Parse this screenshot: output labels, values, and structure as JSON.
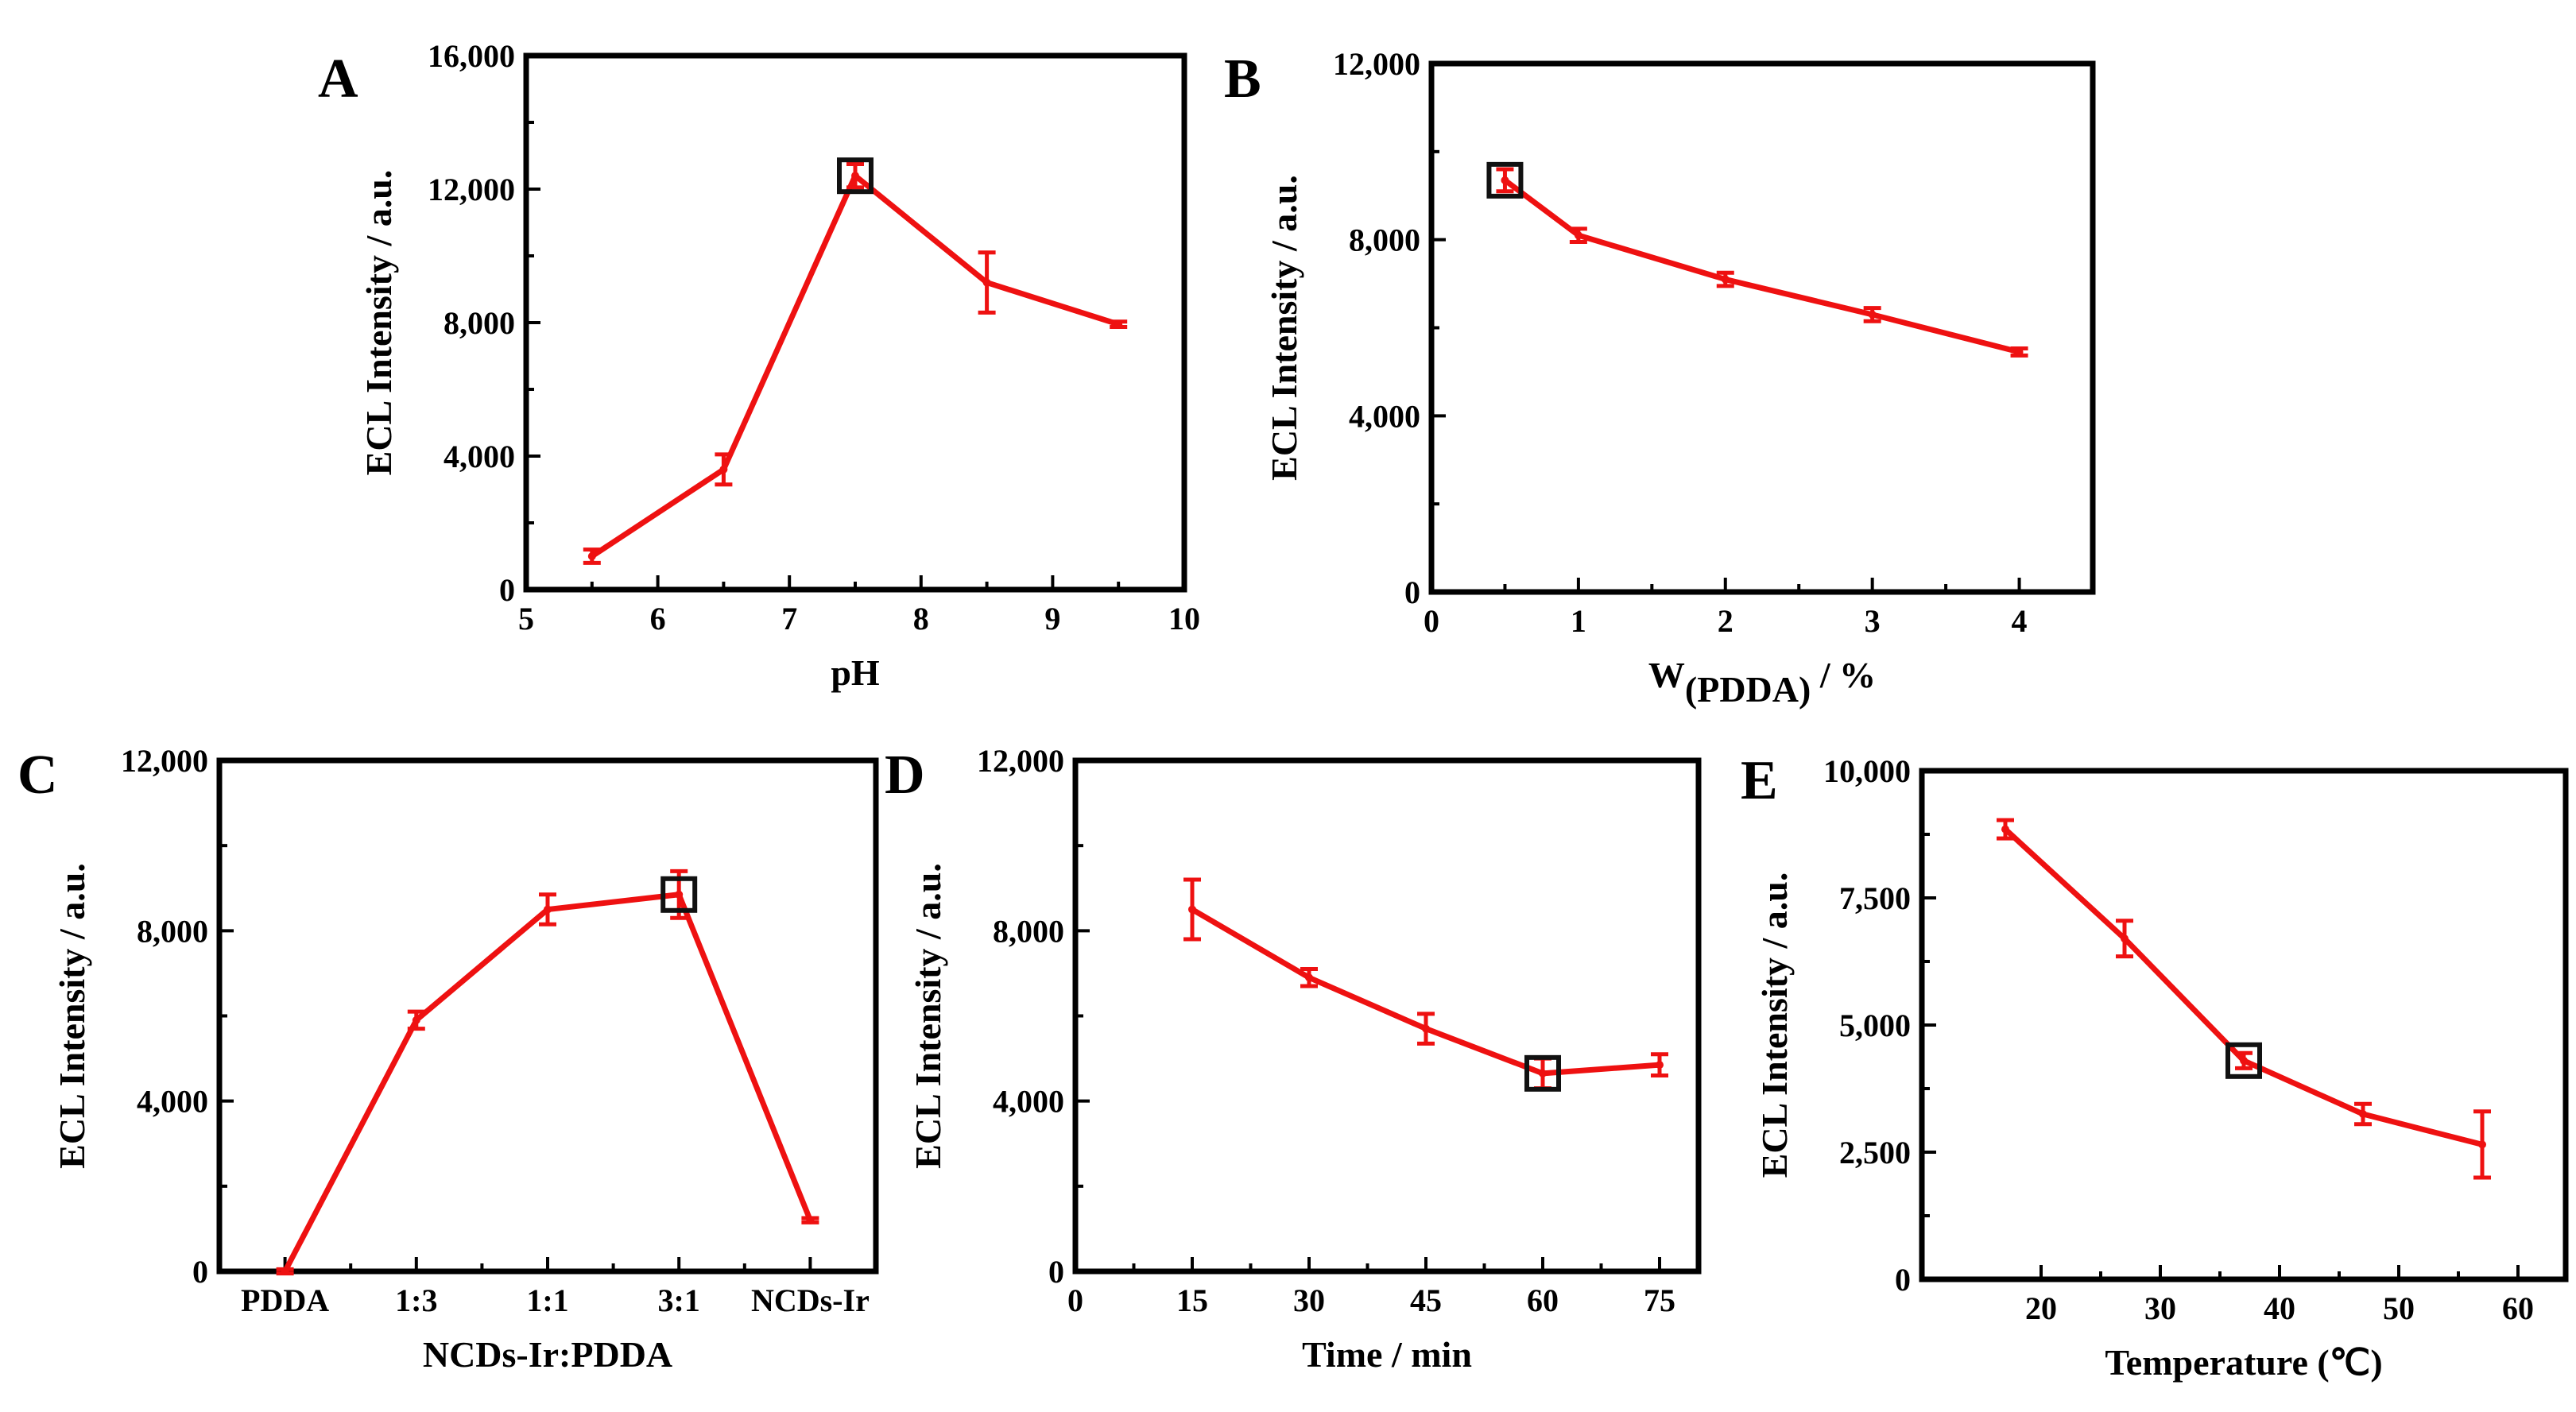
{
  "colors": {
    "series": "#ee1111",
    "axis": "#000000",
    "highlight": "#111111"
  },
  "chart_data": [
    {
      "id": "A",
      "type": "line",
      "panel_label": "A",
      "xlabel": "pH",
      "ylabel": "ECL Intensity / a.u.",
      "xlim": [
        5,
        10
      ],
      "ylim": [
        0,
        16000
      ],
      "xticks": [
        5,
        6,
        7,
        8,
        9,
        10
      ],
      "xtick_labels": [
        "5",
        "6",
        "7",
        "8",
        "9",
        "10"
      ],
      "yticks": [
        0,
        4000,
        8000,
        12000,
        16000
      ],
      "ytick_labels": [
        "0",
        "4,000",
        "8,000",
        "12,000",
        "16,000"
      ],
      "x": [
        5.5,
        6.5,
        7.5,
        8.5,
        9.5
      ],
      "values": [
        1000,
        3600,
        12400,
        9200,
        7950
      ],
      "errors": [
        200,
        450,
        350,
        900,
        80
      ],
      "highlight_index": 2
    },
    {
      "id": "B",
      "type": "line",
      "panel_label": "B",
      "xlabel": "W",
      "xlabel_sub": "(PDDA)",
      "xlabel_suffix": " / %",
      "ylabel": "ECL Intensity / a.u.",
      "xlim": [
        0,
        4.5
      ],
      "ylim": [
        0,
        12000
      ],
      "xticks": [
        0,
        1,
        2,
        3,
        4
      ],
      "xtick_labels": [
        "0",
        "1",
        "2",
        "3",
        "4"
      ],
      "yticks": [
        0,
        4000,
        8000,
        12000
      ],
      "ytick_labels": [
        "0",
        "4,000",
        "8,000",
        "12,000"
      ],
      "x": [
        0.5,
        1,
        2,
        3,
        4
      ],
      "values": [
        9350,
        8100,
        7100,
        6300,
        5450
      ],
      "errors": [
        250,
        150,
        150,
        150,
        80
      ],
      "highlight_index": 0
    },
    {
      "id": "C",
      "type": "line",
      "panel_label": "C",
      "xlabel": "NCDs-Ir:PDDA",
      "ylabel": "ECL Intensity / a.u.",
      "xlim": [
        -0.5,
        4.5
      ],
      "ylim": [
        0,
        12000
      ],
      "xticks": [
        0,
        1,
        2,
        3,
        4
      ],
      "xtick_labels": [
        "PDDA",
        "1:3",
        "1:1",
        "3:1",
        "NCDs-Ir"
      ],
      "yticks": [
        0,
        4000,
        8000,
        12000
      ],
      "ytick_labels": [
        "0",
        "4,000",
        "8,000",
        "12,000"
      ],
      "x": [
        0,
        1,
        2,
        3,
        4
      ],
      "values": [
        0,
        5900,
        8500,
        8850,
        1200
      ],
      "errors": [
        50,
        200,
        350,
        550,
        50
      ],
      "highlight_index": 3
    },
    {
      "id": "D",
      "type": "line",
      "panel_label": "D",
      "xlabel": "Time / min",
      "ylabel": "ECL Intensity / a.u.",
      "xlim": [
        0,
        80
      ],
      "ylim": [
        0,
        12000
      ],
      "xticks": [
        0,
        15,
        30,
        45,
        60,
        75
      ],
      "xtick_labels": [
        "0",
        "15",
        "30",
        "45",
        "60",
        "75"
      ],
      "yticks": [
        0,
        4000,
        8000,
        12000
      ],
      "ytick_labels": [
        "0",
        "4,000",
        "8,000",
        "12,000"
      ],
      "x": [
        15,
        30,
        45,
        60,
        75
      ],
      "values": [
        8500,
        6900,
        5700,
        4650,
        4850
      ],
      "errors": [
        700,
        200,
        350,
        350,
        250
      ],
      "highlight_index": 3
    },
    {
      "id": "E",
      "type": "line",
      "panel_label": "E",
      "xlabel": "Temperature (℃)",
      "ylabel": "ECL Intensity / a.u.",
      "xlim": [
        10,
        64
      ],
      "ylim": [
        0,
        10000
      ],
      "xticks": [
        20,
        30,
        40,
        50,
        60
      ],
      "xtick_labels": [
        "20",
        "30",
        "40",
        "50",
        "60"
      ],
      "yticks": [
        0,
        2500,
        5000,
        7500,
        10000
      ],
      "ytick_labels": [
        "0",
        "2,500",
        "5,000",
        "7,500",
        "10,000"
      ],
      "x": [
        17,
        27,
        37,
        47,
        57
      ],
      "values": [
        8850,
        6700,
        4300,
        3250,
        2650
      ],
      "errors": [
        180,
        350,
        150,
        200,
        650
      ],
      "highlight_index": 2
    }
  ]
}
